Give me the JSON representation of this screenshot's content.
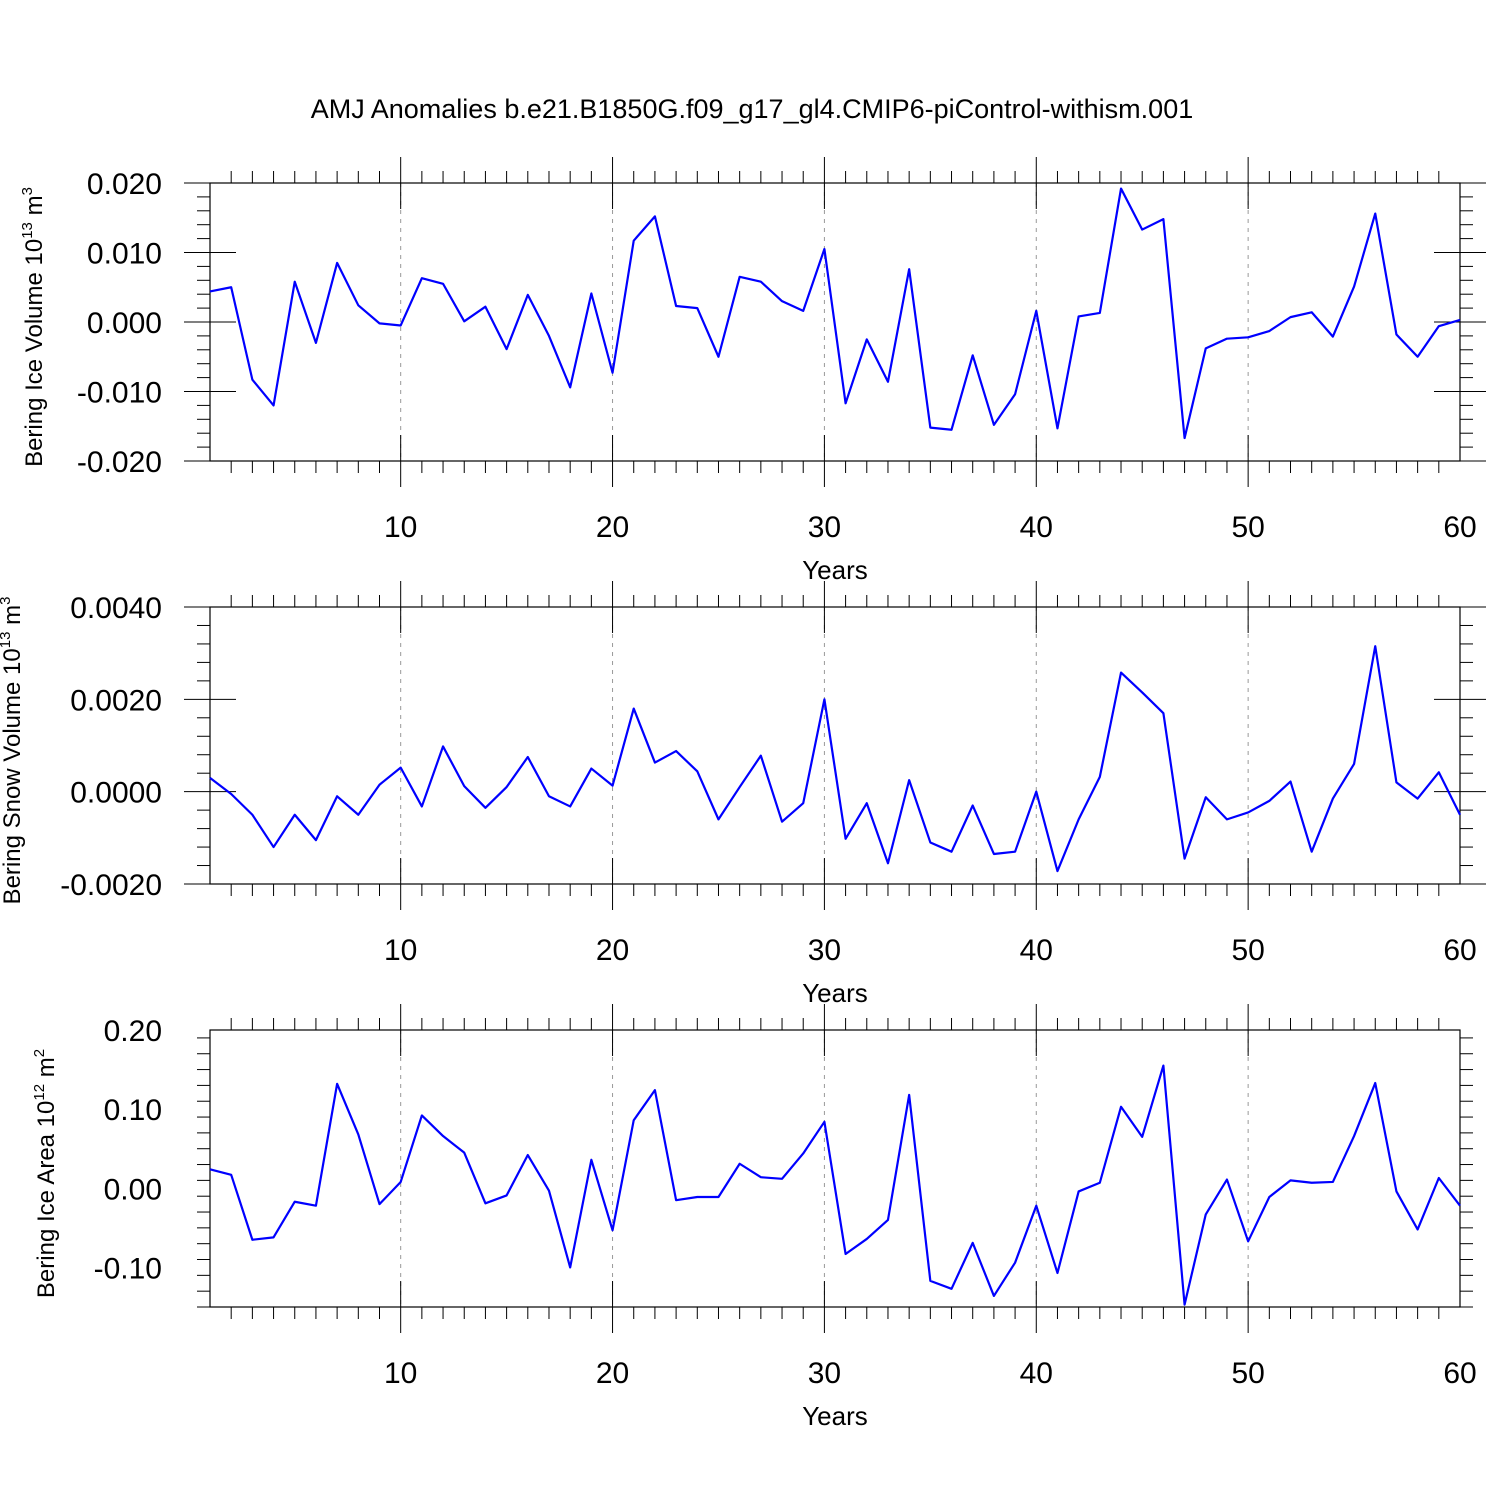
{
  "title": "AMJ Anomalies b.e21.B1850G.f09_g17_gl4.CMIP6-piControl-withism.001",
  "chart_data": [
    {
      "type": "line",
      "xlabel": "Years",
      "ylabel": "Bering Ice Volume 10",
      "ylabel_exp": "13",
      "ylabel_unit": " m",
      "ylabel_unit_exp": "3",
      "xlim": [
        1,
        60
      ],
      "ylim": [
        -0.02,
        0.02
      ],
      "xticks": [
        10,
        20,
        30,
        40,
        50,
        60
      ],
      "yticks": [
        0.02,
        0.01,
        0.0,
        -0.01,
        -0.02
      ],
      "ytick_labels": [
        "0.020",
        "0.010",
        "0.000",
        "-0.010",
        "-0.020"
      ],
      "grid_x": true,
      "series": [
        {
          "color": "#0000ff",
          "x": [
            1,
            2,
            3,
            4,
            5,
            6,
            7,
            8,
            9,
            10,
            11,
            12,
            13,
            14,
            15,
            16,
            17,
            18,
            19,
            20,
            21,
            22,
            23,
            24,
            25,
            26,
            27,
            28,
            29,
            30,
            31,
            32,
            33,
            34,
            35,
            36,
            37,
            38,
            39,
            40,
            41,
            42,
            43,
            44,
            45,
            46,
            47,
            48,
            49,
            50,
            51,
            52,
            53,
            54,
            55,
            56,
            57,
            58,
            59,
            60
          ],
          "y": [
            0.0044,
            0.005,
            -0.0083,
            -0.012,
            0.0058,
            -0.003,
            0.0085,
            0.0024,
            -0.0002,
            -0.0005,
            0.0063,
            0.0055,
            0.0001,
            0.0022,
            -0.0039,
            0.0039,
            -0.002,
            -0.0094,
            0.0041,
            -0.0073,
            0.0117,
            0.0152,
            0.0023,
            0.002,
            -0.005,
            0.0065,
            0.0058,
            0.003,
            0.0016,
            0.0105,
            -0.0117,
            -0.0025,
            -0.0086,
            0.0076,
            -0.0152,
            -0.0155,
            -0.0048,
            -0.0148,
            -0.0104,
            0.0016,
            -0.0153,
            0.0008,
            0.0013,
            0.0192,
            0.0133,
            0.0148,
            -0.0167,
            -0.0038,
            -0.0024,
            -0.0022,
            -0.0013,
            0.0007,
            0.0014,
            -0.0021,
            0.0051,
            0.0156,
            -0.0018,
            -0.005,
            -0.0006,
            0.0003
          ]
        }
      ]
    },
    {
      "type": "line",
      "xlabel": "Years",
      "ylabel": "Bering Snow Volume 10",
      "ylabel_exp": "13",
      "ylabel_unit": " m",
      "ylabel_unit_exp": "3",
      "xlim": [
        1,
        60
      ],
      "ylim": [
        -0.002,
        0.004
      ],
      "xticks": [
        10,
        20,
        30,
        40,
        50,
        60
      ],
      "yticks": [
        0.004,
        0.002,
        0.0,
        -0.002
      ],
      "ytick_labels": [
        "0.0040",
        "0.0020",
        "0.0000",
        "-0.0020"
      ],
      "grid_x": true,
      "series": [
        {
          "color": "#0000ff",
          "x": [
            1,
            2,
            3,
            4,
            5,
            6,
            7,
            8,
            9,
            10,
            11,
            12,
            13,
            14,
            15,
            16,
            17,
            18,
            19,
            20,
            21,
            22,
            23,
            24,
            25,
            26,
            27,
            28,
            29,
            30,
            31,
            32,
            33,
            34,
            35,
            36,
            37,
            38,
            39,
            40,
            41,
            42,
            43,
            44,
            45,
            46,
            47,
            48,
            49,
            50,
            51,
            52,
            53,
            54,
            55,
            56,
            57,
            58,
            59,
            60
          ],
          "y": [
            0.0003,
            -5e-05,
            -0.0005,
            -0.0012,
            -0.0005,
            -0.00105,
            -0.0001,
            -0.0005,
            0.00015,
            0.00052,
            -0.00032,
            0.00098,
            0.00012,
            -0.00035,
            0.0001,
            0.00075,
            -0.0001,
            -0.00032,
            0.0005,
            0.00013,
            0.0018,
            0.00063,
            0.00088,
            0.00044,
            -0.0006,
            0.0001,
            0.00078,
            -0.00065,
            -0.00025,
            0.002,
            -0.00102,
            -0.00025,
            -0.00155,
            0.00025,
            -0.0011,
            -0.0013,
            -0.0003,
            -0.00135,
            -0.0013,
            0.0,
            -0.00172,
            -0.0006,
            0.00032,
            0.00258,
            0.00215,
            0.0017,
            -0.00145,
            -0.00012,
            -0.0006,
            -0.00045,
            -0.0002,
            0.00022,
            -0.0013,
            -0.00015,
            0.0006,
            0.00315,
            0.0002,
            -0.00015,
            0.00042,
            -0.0005
          ]
        }
      ]
    },
    {
      "type": "line",
      "xlabel": "Years",
      "ylabel": "Bering Ice Area 10",
      "ylabel_exp": "12",
      "ylabel_unit": " m",
      "ylabel_unit_exp": "2",
      "xlim": [
        1,
        60
      ],
      "ylim": [
        -0.15,
        0.2
      ],
      "xticks": [
        10,
        20,
        30,
        40,
        50,
        60
      ],
      "yticks": [
        0.2,
        0.1,
        0.0,
        -0.1
      ],
      "ytick_labels": [
        "0.20",
        "0.10",
        "0.00",
        "-0.10"
      ],
      "grid_x": true,
      "series": [
        {
          "color": "#0000ff",
          "x": [
            1,
            2,
            3,
            4,
            5,
            6,
            7,
            8,
            9,
            10,
            11,
            12,
            13,
            14,
            15,
            16,
            17,
            18,
            19,
            20,
            21,
            22,
            23,
            24,
            25,
            26,
            27,
            28,
            29,
            30,
            31,
            32,
            33,
            34,
            35,
            36,
            37,
            38,
            39,
            40,
            41,
            42,
            43,
            44,
            45,
            46,
            47,
            48,
            49,
            50,
            51,
            52,
            53,
            54,
            55,
            56,
            57,
            58,
            59,
            60
          ],
          "y": [
            0.024,
            0.017,
            -0.065,
            -0.062,
            -0.017,
            -0.022,
            0.132,
            0.068,
            -0.02,
            0.008,
            0.092,
            0.066,
            0.045,
            -0.019,
            -0.009,
            0.042,
            -0.003,
            -0.1,
            0.036,
            -0.053,
            0.086,
            0.124,
            -0.015,
            -0.011,
            -0.011,
            0.031,
            0.014,
            0.012,
            0.044,
            0.084,
            -0.083,
            -0.064,
            -0.04,
            0.118,
            -0.117,
            -0.127,
            -0.069,
            -0.136,
            -0.094,
            -0.022,
            -0.107,
            -0.004,
            0.007,
            0.103,
            0.065,
            0.155,
            -0.147,
            -0.033,
            0.011,
            -0.067,
            -0.011,
            0.01,
            0.007,
            0.008,
            0.066,
            0.133,
            -0.004,
            -0.052,
            0.013,
            -0.022
          ]
        }
      ]
    }
  ]
}
